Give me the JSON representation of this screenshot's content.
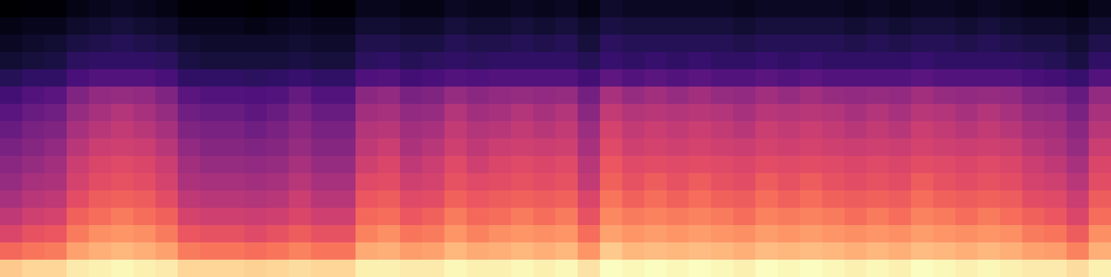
{
  "chart_data": {
    "type": "heatmap",
    "color": "magma",
    "tick_labels": false,
    "cells": [
      [
        17,
        18,
        18,
        20,
        21,
        22,
        21,
        20,
        18,
        18,
        18,
        17,
        18,
        19,
        18,
        18,
        21,
        21,
        20,
        20,
        22,
        21,
        21,
        22,
        21,
        22,
        20,
        23,
        22,
        22,
        22,
        22,
        22,
        21,
        22,
        22,
        22,
        22,
        21,
        22,
        21,
        22,
        22,
        21,
        22,
        21,
        20,
        20,
        19,
        21
      ],
      [
        20,
        21,
        21,
        23,
        24,
        25,
        24,
        23,
        21,
        21,
        21,
        20,
        21,
        22,
        21,
        21,
        24,
        24,
        23,
        23,
        25,
        24,
        24,
        25,
        24,
        25,
        23,
        26,
        25,
        25,
        25,
        25,
        25,
        24,
        25,
        25,
        25,
        25,
        24,
        25,
        24,
        25,
        25,
        24,
        25,
        24,
        23,
        23,
        22,
        24
      ],
      [
        22,
        23,
        24,
        26,
        27,
        28,
        27,
        26,
        24,
        23,
        23,
        23,
        23,
        24,
        23,
        23,
        27,
        27,
        26,
        26,
        28,
        27,
        27,
        28,
        27,
        28,
        25,
        29,
        28,
        28,
        28,
        28,
        28,
        27,
        28,
        28,
        28,
        28,
        27,
        28,
        27,
        28,
        28,
        27,
        28,
        27,
        26,
        26,
        24,
        27
      ],
      [
        24,
        25,
        26,
        29,
        30,
        30,
        30,
        29,
        26,
        25,
        25,
        25,
        25,
        26,
        25,
        25,
        29,
        30,
        28,
        29,
        30,
        29,
        30,
        30,
        30,
        30,
        28,
        31,
        30,
        31,
        30,
        31,
        30,
        30,
        31,
        30,
        31,
        30,
        30,
        30,
        30,
        31,
        30,
        30,
        30,
        30,
        29,
        28,
        26,
        30
      ],
      [
        28,
        30,
        30,
        34,
        36,
        36,
        36,
        34,
        30,
        30,
        30,
        29,
        30,
        31,
        30,
        30,
        35,
        36,
        33,
        34,
        36,
        35,
        36,
        36,
        36,
        36,
        33,
        38,
        36,
        37,
        36,
        37,
        36,
        36,
        37,
        36,
        37,
        36,
        36,
        36,
        36,
        37,
        36,
        36,
        36,
        36,
        34,
        33,
        31,
        36
      ],
      [
        33,
        36,
        37,
        44,
        47,
        48,
        47,
        44,
        37,
        36,
        36,
        35,
        36,
        39,
        36,
        36,
        46,
        47,
        43,
        44,
        48,
        46,
        47,
        48,
        47,
        48,
        42,
        51,
        48,
        50,
        48,
        50,
        48,
        47,
        50,
        48,
        50,
        48,
        47,
        48,
        47,
        50,
        48,
        47,
        48,
        47,
        44,
        43,
        39,
        47
      ],
      [
        37,
        40,
        41,
        48,
        51,
        53,
        51,
        48,
        41,
        40,
        40,
        38,
        40,
        43,
        40,
        40,
        50,
        51,
        47,
        48,
        53,
        50,
        51,
        53,
        51,
        53,
        46,
        56,
        53,
        54,
        53,
        54,
        53,
        51,
        54,
        53,
        54,
        53,
        51,
        53,
        51,
        54,
        53,
        51,
        53,
        51,
        48,
        47,
        43,
        51
      ],
      [
        40,
        43,
        44,
        51,
        54,
        56,
        54,
        51,
        44,
        43,
        43,
        41,
        43,
        46,
        43,
        43,
        53,
        54,
        50,
        51,
        56,
        53,
        54,
        56,
        54,
        56,
        49,
        59,
        56,
        57,
        56,
        57,
        56,
        54,
        57,
        56,
        57,
        56,
        54,
        56,
        54,
        57,
        56,
        54,
        56,
        54,
        51,
        50,
        46,
        54
      ],
      [
        43,
        45,
        47,
        54,
        57,
        58,
        57,
        54,
        47,
        45,
        45,
        44,
        45,
        48,
        45,
        45,
        55,
        57,
        52,
        54,
        58,
        55,
        57,
        58,
        57,
        58,
        51,
        61,
        58,
        59,
        58,
        59,
        58,
        57,
        59,
        58,
        59,
        58,
        57,
        58,
        57,
        59,
        58,
        57,
        58,
        57,
        54,
        52,
        48,
        57
      ],
      [
        46,
        48,
        50,
        57,
        60,
        61,
        60,
        57,
        50,
        48,
        48,
        47,
        48,
        51,
        48,
        48,
        58,
        60,
        55,
        57,
        61,
        58,
        60,
        61,
        60,
        61,
        54,
        64,
        61,
        62,
        61,
        62,
        61,
        60,
        62,
        61,
        62,
        61,
        60,
        61,
        60,
        62,
        61,
        60,
        61,
        60,
        57,
        55,
        51,
        60
      ],
      [
        48,
        51,
        52,
        59,
        62,
        63,
        62,
        59,
        52,
        51,
        51,
        50,
        51,
        54,
        51,
        51,
        61,
        62,
        58,
        59,
        63,
        61,
        62,
        63,
        62,
        63,
        56,
        66,
        63,
        65,
        63,
        65,
        63,
        62,
        65,
        63,
        65,
        63,
        62,
        63,
        62,
        65,
        63,
        62,
        63,
        62,
        59,
        58,
        54,
        62
      ],
      [
        51,
        54,
        55,
        62,
        65,
        66,
        65,
        62,
        55,
        54,
        54,
        53,
        54,
        57,
        54,
        54,
        64,
        65,
        61,
        62,
        66,
        64,
        65,
        66,
        65,
        66,
        60,
        69,
        66,
        68,
        66,
        68,
        66,
        65,
        68,
        66,
        68,
        66,
        65,
        66,
        65,
        68,
        66,
        65,
        66,
        65,
        62,
        61,
        57,
        65
      ],
      [
        55,
        58,
        59,
        66,
        68,
        70,
        68,
        66,
        59,
        58,
        58,
        57,
        58,
        60,
        58,
        58,
        67,
        68,
        64,
        66,
        70,
        67,
        68,
        70,
        68,
        70,
        63,
        72,
        70,
        71,
        70,
        71,
        70,
        68,
        71,
        70,
        71,
        70,
        68,
        70,
        68,
        71,
        70,
        68,
        70,
        68,
        66,
        64,
        60,
        68
      ],
      [
        60,
        63,
        64,
        70,
        73,
        74,
        73,
        70,
        64,
        63,
        63,
        61,
        63,
        65,
        63,
        63,
        71,
        73,
        69,
        70,
        74,
        71,
        73,
        74,
        73,
        74,
        68,
        76,
        74,
        75,
        74,
        75,
        74,
        73,
        75,
        74,
        75,
        74,
        73,
        74,
        73,
        75,
        74,
        73,
        74,
        73,
        70,
        69,
        65,
        73
      ],
      [
        67,
        69,
        70,
        76,
        78,
        79,
        78,
        76,
        70,
        69,
        69,
        68,
        69,
        71,
        69,
        69,
        77,
        78,
        75,
        76,
        79,
        77,
        78,
        79,
        78,
        79,
        74,
        82,
        79,
        80,
        79,
        80,
        79,
        78,
        80,
        79,
        80,
        79,
        78,
        79,
        78,
        80,
        79,
        78,
        79,
        78,
        76,
        75,
        71,
        78
      ],
      [
        82,
        84,
        84,
        87,
        88,
        89,
        88,
        87,
        84,
        84,
        84,
        83,
        84,
        85,
        84,
        84,
        88,
        88,
        87,
        87,
        89,
        88,
        88,
        89,
        88,
        89,
        86,
        90,
        89,
        90,
        89,
        90,
        89,
        88,
        90,
        89,
        90,
        89,
        88,
        89,
        88,
        90,
        89,
        88,
        89,
        88,
        87,
        87,
        85,
        88
      ]
    ]
  }
}
